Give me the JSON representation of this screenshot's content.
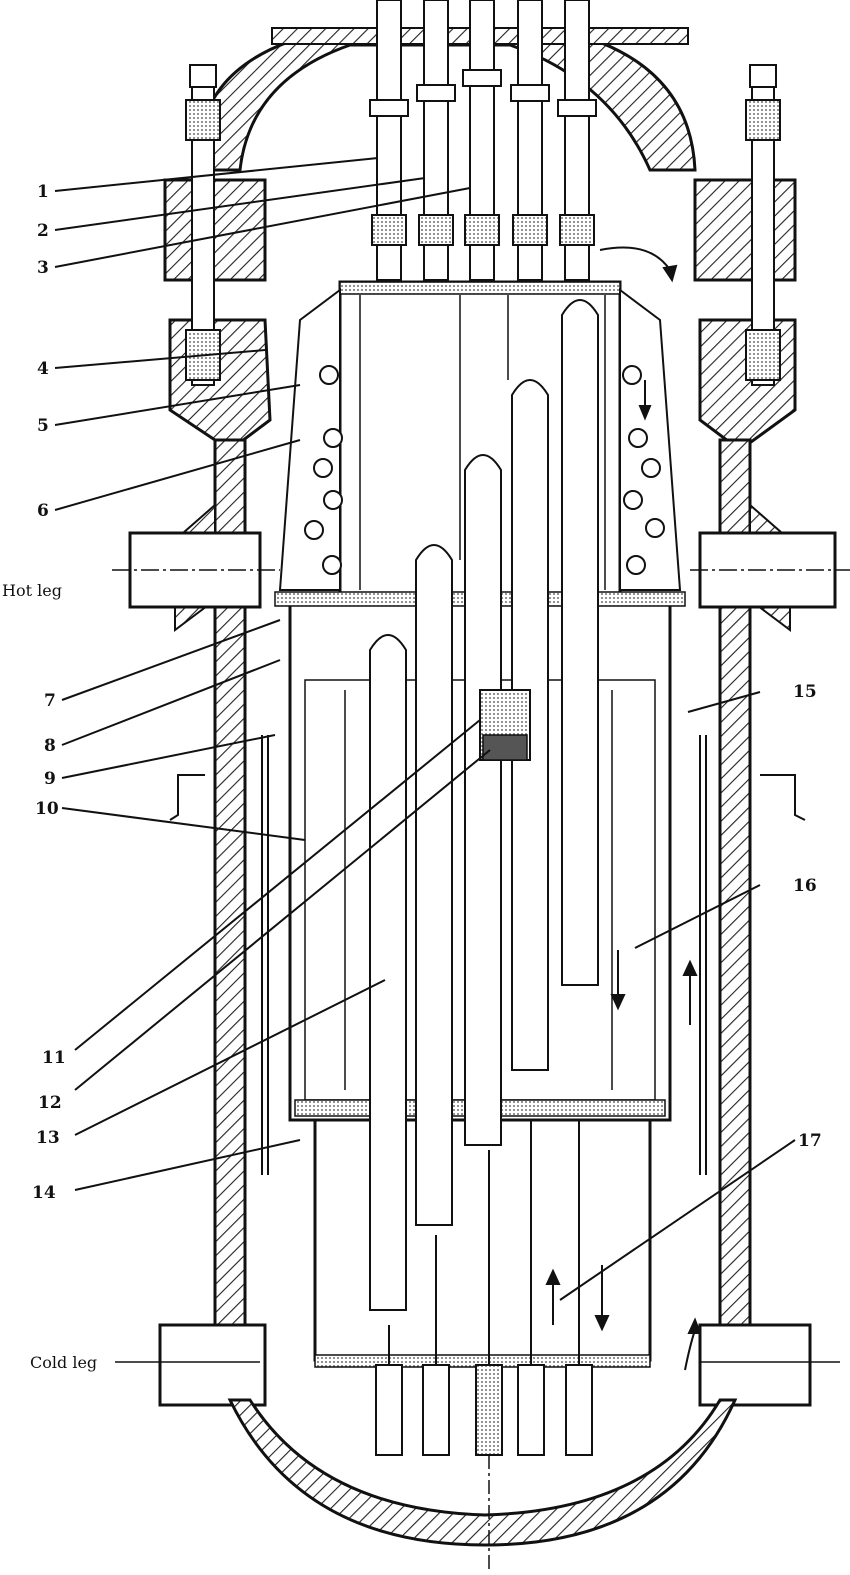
{
  "diagram": {
    "callouts": [
      "1",
      "2",
      "3",
      "4",
      "5",
      "6",
      "7",
      "8",
      "9",
      "10",
      "11",
      "12",
      "13",
      "14",
      "15",
      "16",
      "17"
    ],
    "side_labels": {
      "hot_leg": "Hot leg",
      "cold_leg": "Cold leg"
    }
  }
}
